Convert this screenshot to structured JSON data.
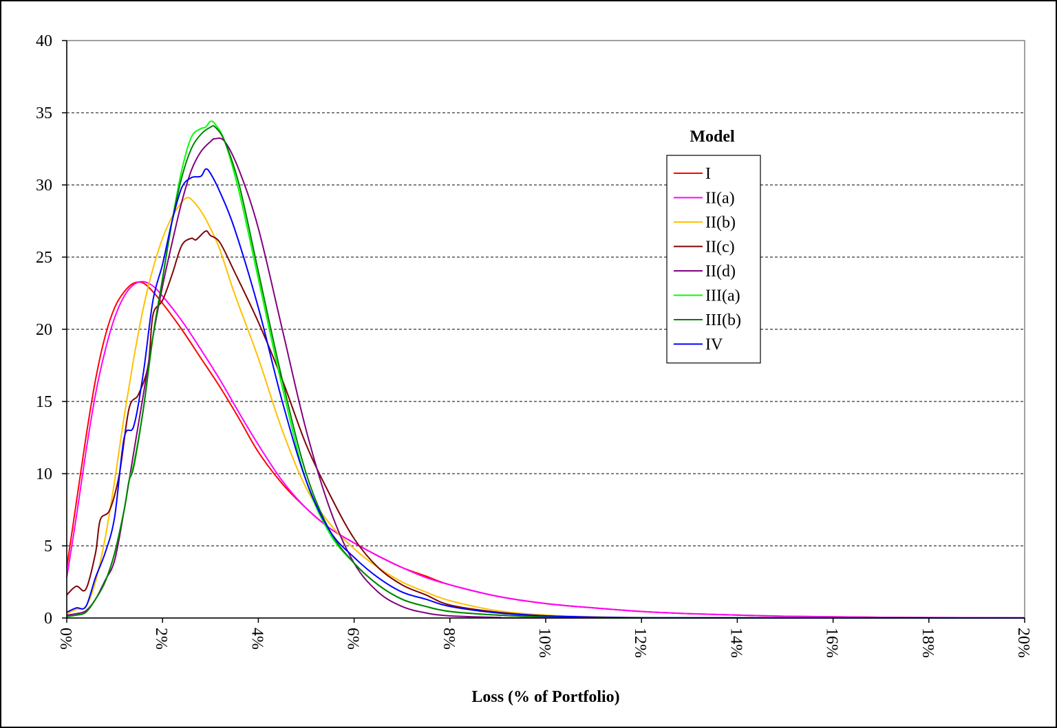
{
  "chart_data": {
    "type": "line",
    "title": "",
    "xlabel": "Loss (% of Portfolio)",
    "ylabel": "",
    "xlim": [
      0,
      20
    ],
    "ylim": [
      0,
      40
    ],
    "x_ticks": [
      "0%",
      "2%",
      "4%",
      "6%",
      "8%",
      "10%",
      "12%",
      "14%",
      "16%",
      "18%",
      "20%"
    ],
    "y_ticks": [
      "0",
      "5",
      "10",
      "15",
      "20",
      "25",
      "30",
      "35",
      "40"
    ],
    "grid": "horizontal dashed",
    "legend": {
      "title": "Model",
      "placement": "right"
    },
    "series": [
      {
        "name": "I",
        "color": "#ff0000",
        "points": [
          [
            0,
            3.5
          ],
          [
            0.2,
            8
          ],
          [
            0.4,
            12.5
          ],
          [
            0.6,
            16.5
          ],
          [
            0.8,
            19.5
          ],
          [
            1.0,
            21.5
          ],
          [
            1.2,
            22.6
          ],
          [
            1.4,
            23.2
          ],
          [
            1.6,
            23.2
          ],
          [
            1.8,
            22.6
          ],
          [
            2.0,
            21.8
          ],
          [
            2.4,
            20.0
          ],
          [
            2.8,
            18.0
          ],
          [
            3.2,
            16.0
          ],
          [
            3.6,
            13.8
          ],
          [
            4.0,
            11.5
          ],
          [
            4.5,
            9.3
          ],
          [
            5.0,
            7.6
          ],
          [
            5.5,
            6.2
          ],
          [
            6.0,
            5.2
          ],
          [
            6.5,
            4.3
          ],
          [
            7.0,
            3.5
          ],
          [
            7.5,
            2.9
          ],
          [
            8.0,
            2.3
          ],
          [
            9.0,
            1.5
          ],
          [
            10.0,
            1.0
          ],
          [
            11.0,
            0.7
          ],
          [
            12.0,
            0.45
          ],
          [
            13.0,
            0.3
          ],
          [
            14.0,
            0.2
          ],
          [
            15.0,
            0.12
          ],
          [
            16.0,
            0.08
          ],
          [
            17.0,
            0.05
          ],
          [
            18.0,
            0.03
          ],
          [
            20.0,
            0.01
          ]
        ]
      },
      {
        "name": "II(a)",
        "color": "#ff00ff",
        "points": [
          [
            0,
            2.8
          ],
          [
            0.2,
            7
          ],
          [
            0.4,
            11.5
          ],
          [
            0.6,
            15.5
          ],
          [
            0.8,
            18.5
          ],
          [
            1.0,
            20.8
          ],
          [
            1.2,
            22.3
          ],
          [
            1.4,
            23.1
          ],
          [
            1.6,
            23.3
          ],
          [
            1.8,
            23.0
          ],
          [
            2.0,
            22.3
          ],
          [
            2.4,
            20.6
          ],
          [
            2.8,
            18.6
          ],
          [
            3.2,
            16.5
          ],
          [
            3.6,
            14.2
          ],
          [
            4.0,
            12.0
          ],
          [
            4.5,
            9.5
          ],
          [
            5.0,
            7.6
          ],
          [
            5.5,
            6.2
          ],
          [
            6.0,
            5.2
          ],
          [
            6.5,
            4.3
          ],
          [
            7.0,
            3.5
          ],
          [
            7.5,
            2.8
          ],
          [
            8.0,
            2.3
          ],
          [
            9.0,
            1.5
          ],
          [
            10.0,
            1.0
          ],
          [
            11.0,
            0.7
          ],
          [
            12.0,
            0.45
          ],
          [
            13.0,
            0.3
          ],
          [
            14.0,
            0.2
          ],
          [
            15.0,
            0.12
          ],
          [
            16.0,
            0.08
          ],
          [
            17.0,
            0.05
          ],
          [
            18.0,
            0.03
          ],
          [
            20.0,
            0.01
          ]
        ]
      },
      {
        "name": "II(b)",
        "color": "#ffc000",
        "points": [
          [
            0,
            0.3
          ],
          [
            0.2,
            0.6
          ],
          [
            0.4,
            0.8
          ],
          [
            0.6,
            2.5
          ],
          [
            0.8,
            5.5
          ],
          [
            1.0,
            9.5
          ],
          [
            1.2,
            14.0
          ],
          [
            1.4,
            18.0
          ],
          [
            1.6,
            21.5
          ],
          [
            1.8,
            24.2
          ],
          [
            2.0,
            26.3
          ],
          [
            2.2,
            27.8
          ],
          [
            2.4,
            28.8
          ],
          [
            2.5,
            29.1
          ],
          [
            2.6,
            29.0
          ],
          [
            2.8,
            28.2
          ],
          [
            3.0,
            27.0
          ],
          [
            3.2,
            25.5
          ],
          [
            3.5,
            22.5
          ],
          [
            4.0,
            18.0
          ],
          [
            4.5,
            13.0
          ],
          [
            5.0,
            9.0
          ],
          [
            5.5,
            6.5
          ],
          [
            6.0,
            4.8
          ],
          [
            6.5,
            3.5
          ],
          [
            7.0,
            2.5
          ],
          [
            7.5,
            1.8
          ],
          [
            8.0,
            1.2
          ],
          [
            9.0,
            0.5
          ],
          [
            10.0,
            0.2
          ],
          [
            11.0,
            0.08
          ],
          [
            12.0,
            0.03
          ],
          [
            14.0,
            0.01
          ],
          [
            20.0,
            0
          ]
        ]
      },
      {
        "name": "II(c)",
        "color": "#800000",
        "points": [
          [
            0,
            1.6
          ],
          [
            0.2,
            2.2
          ],
          [
            0.4,
            2.0
          ],
          [
            0.6,
            4.5
          ],
          [
            0.7,
            6.8
          ],
          [
            0.9,
            7.5
          ],
          [
            1.1,
            10.0
          ],
          [
            1.3,
            14.5
          ],
          [
            1.5,
            15.5
          ],
          [
            1.7,
            17.5
          ],
          [
            1.8,
            21.0
          ],
          [
            2.0,
            22.0
          ],
          [
            2.2,
            23.8
          ],
          [
            2.4,
            25.8
          ],
          [
            2.6,
            26.3
          ],
          [
            2.7,
            26.2
          ],
          [
            2.9,
            26.8
          ],
          [
            3.0,
            26.5
          ],
          [
            3.2,
            26.0
          ],
          [
            3.5,
            24.0
          ],
          [
            4.0,
            20.5
          ],
          [
            4.5,
            16.5
          ],
          [
            5.0,
            12.0
          ],
          [
            5.5,
            8.5
          ],
          [
            6.0,
            5.5
          ],
          [
            6.5,
            3.5
          ],
          [
            7.0,
            2.3
          ],
          [
            7.5,
            1.6
          ],
          [
            8.0,
            0.9
          ],
          [
            9.0,
            0.4
          ],
          [
            10.0,
            0.15
          ],
          [
            11.0,
            0.05
          ],
          [
            12.0,
            0.02
          ],
          [
            14.0,
            0.01
          ],
          [
            20.0,
            0
          ]
        ]
      },
      {
        "name": "II(d)",
        "color": "#800080",
        "points": [
          [
            0,
            0.2
          ],
          [
            0.2,
            0.3
          ],
          [
            0.4,
            0.5
          ],
          [
            0.6,
            1.3
          ],
          [
            0.8,
            2.6
          ],
          [
            1.0,
            4.0
          ],
          [
            1.2,
            7.5
          ],
          [
            1.4,
            11.5
          ],
          [
            1.6,
            15.5
          ],
          [
            1.8,
            19.5
          ],
          [
            2.0,
            23.0
          ],
          [
            2.2,
            26.0
          ],
          [
            2.4,
            28.8
          ],
          [
            2.6,
            31.0
          ],
          [
            2.8,
            32.3
          ],
          [
            3.0,
            33.0
          ],
          [
            3.1,
            33.2
          ],
          [
            3.3,
            33.0
          ],
          [
            3.6,
            31.0
          ],
          [
            4.0,
            27.0
          ],
          [
            4.5,
            20.0
          ],
          [
            5.0,
            13.0
          ],
          [
            5.5,
            7.5
          ],
          [
            6.0,
            3.8
          ],
          [
            6.5,
            1.8
          ],
          [
            7.0,
            0.8
          ],
          [
            7.5,
            0.35
          ],
          [
            8.0,
            0.15
          ],
          [
            9.0,
            0.04
          ],
          [
            10.0,
            0.01
          ],
          [
            20.0,
            0
          ]
        ]
      },
      {
        "name": "III(a)",
        "color": "#00ff00",
        "points": [
          [
            0,
            0.1
          ],
          [
            0.2,
            0.2
          ],
          [
            0.4,
            0.4
          ],
          [
            0.6,
            1.3
          ],
          [
            0.8,
            2.5
          ],
          [
            1.0,
            4.5
          ],
          [
            1.2,
            7.5
          ],
          [
            1.3,
            9.5
          ],
          [
            1.4,
            10.7
          ],
          [
            1.6,
            14.5
          ],
          [
            1.8,
            19.5
          ],
          [
            2.0,
            23.5
          ],
          [
            2.2,
            27.5
          ],
          [
            2.4,
            31.0
          ],
          [
            2.6,
            33.3
          ],
          [
            2.8,
            33.9
          ],
          [
            2.9,
            34.0
          ],
          [
            3.0,
            34.4
          ],
          [
            3.1,
            34.2
          ],
          [
            3.3,
            33.0
          ],
          [
            3.6,
            29.5
          ],
          [
            4.0,
            23.5
          ],
          [
            4.5,
            16.0
          ],
          [
            5.0,
            9.5
          ],
          [
            5.5,
            5.8
          ],
          [
            6.0,
            3.8
          ],
          [
            6.5,
            2.3
          ],
          [
            7.0,
            1.3
          ],
          [
            7.5,
            0.8
          ],
          [
            8.0,
            0.45
          ],
          [
            9.0,
            0.2
          ],
          [
            10.0,
            0.08
          ],
          [
            11.0,
            0.03
          ],
          [
            12.0,
            0.01
          ],
          [
            20.0,
            0
          ]
        ]
      },
      {
        "name": "III(b)",
        "color": "#008000",
        "points": [
          [
            0,
            0.1
          ],
          [
            0.2,
            0.2
          ],
          [
            0.4,
            0.4
          ],
          [
            0.6,
            1.3
          ],
          [
            0.8,
            2.5
          ],
          [
            1.0,
            4.5
          ],
          [
            1.2,
            7.5
          ],
          [
            1.3,
            9.5
          ],
          [
            1.4,
            10.5
          ],
          [
            1.6,
            14.5
          ],
          [
            1.8,
            19.5
          ],
          [
            2.0,
            23.5
          ],
          [
            2.2,
            27.5
          ],
          [
            2.4,
            30.5
          ],
          [
            2.6,
            32.5
          ],
          [
            2.8,
            33.5
          ],
          [
            3.0,
            34.0
          ],
          [
            3.1,
            34.0
          ],
          [
            3.3,
            33.0
          ],
          [
            3.6,
            30.0
          ],
          [
            4.0,
            24.0
          ],
          [
            4.5,
            16.5
          ],
          [
            5.0,
            10.0
          ],
          [
            5.5,
            6.0
          ],
          [
            6.0,
            3.8
          ],
          [
            6.5,
            2.3
          ],
          [
            7.0,
            1.3
          ],
          [
            7.5,
            0.8
          ],
          [
            8.0,
            0.45
          ],
          [
            9.0,
            0.2
          ],
          [
            10.0,
            0.08
          ],
          [
            11.0,
            0.03
          ],
          [
            12.0,
            0.01
          ],
          [
            20.0,
            0
          ]
        ]
      },
      {
        "name": "IV",
        "color": "#0000ff",
        "points": [
          [
            0,
            0.4
          ],
          [
            0.2,
            0.7
          ],
          [
            0.4,
            0.8
          ],
          [
            0.6,
            2.8
          ],
          [
            0.8,
            4.5
          ],
          [
            1.0,
            7.0
          ],
          [
            1.2,
            12.5
          ],
          [
            1.4,
            13.3
          ],
          [
            1.6,
            17.0
          ],
          [
            1.8,
            22.0
          ],
          [
            2.0,
            24.5
          ],
          [
            2.2,
            27.5
          ],
          [
            2.4,
            29.8
          ],
          [
            2.6,
            30.5
          ],
          [
            2.8,
            30.6
          ],
          [
            2.9,
            31.1
          ],
          [
            3.0,
            30.8
          ],
          [
            3.2,
            29.5
          ],
          [
            3.5,
            27.0
          ],
          [
            4.0,
            21.5
          ],
          [
            4.5,
            15.0
          ],
          [
            5.0,
            9.5
          ],
          [
            5.5,
            6.0
          ],
          [
            6.0,
            4.2
          ],
          [
            6.5,
            2.8
          ],
          [
            7.0,
            1.8
          ],
          [
            7.5,
            1.3
          ],
          [
            8.0,
            0.8
          ],
          [
            9.0,
            0.35
          ],
          [
            10.0,
            0.15
          ],
          [
            11.0,
            0.06
          ],
          [
            12.0,
            0.02
          ],
          [
            14.0,
            0.01
          ],
          [
            20.0,
            0
          ]
        ]
      }
    ]
  }
}
